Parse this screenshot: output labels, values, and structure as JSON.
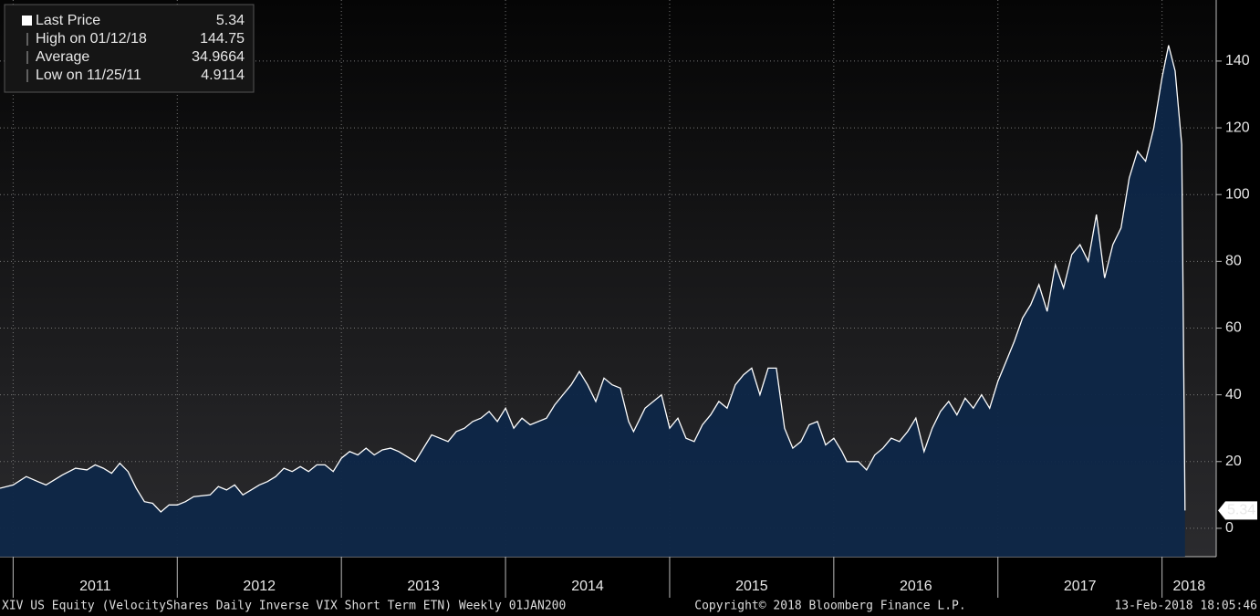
{
  "chart_data": {
    "type": "area",
    "legend": [
      {
        "label": "Last Price",
        "value": 5.34
      },
      {
        "label": "High on 01/12/18",
        "value": 144.75
      },
      {
        "label": "Average",
        "value": 34.9664
      },
      {
        "label": "Low on 11/25/11",
        "value": 4.9114
      }
    ],
    "series": [
      {
        "name": "Last Price",
        "color": "#ffffff",
        "fill": "#0e2748",
        "x": [
          2010.92,
          2011.0,
          2011.08,
          2011.15,
          2011.2,
          2011.25,
          2011.3,
          2011.38,
          2011.45,
          2011.5,
          2011.55,
          2011.6,
          2011.65,
          2011.7,
          2011.75,
          2011.8,
          2011.85,
          2011.9,
          2011.95,
          2012.0,
          2012.05,
          2012.1,
          2012.2,
          2012.25,
          2012.3,
          2012.35,
          2012.4,
          2012.45,
          2012.5,
          2012.55,
          2012.6,
          2012.65,
          2012.7,
          2012.75,
          2012.8,
          2012.85,
          2012.9,
          2012.95,
          2013.0,
          2013.05,
          2013.1,
          2013.15,
          2013.2,
          2013.25,
          2013.3,
          2013.35,
          2013.45,
          2013.5,
          2013.55,
          2013.6,
          2013.65,
          2013.7,
          2013.75,
          2013.8,
          2013.85,
          2013.9,
          2013.95,
          2014.0,
          2014.05,
          2014.1,
          2014.15,
          2014.2,
          2014.25,
          2014.3,
          2014.35,
          2014.4,
          2014.45,
          2014.5,
          2014.55,
          2014.6,
          2014.65,
          2014.7,
          2014.75,
          2014.78,
          2014.85,
          2014.95,
          2015.0,
          2015.05,
          2015.1,
          2015.15,
          2015.2,
          2015.25,
          2015.3,
          2015.35,
          2015.4,
          2015.45,
          2015.5,
          2015.55,
          2015.6,
          2015.65,
          2015.7,
          2015.75,
          2015.8,
          2015.85,
          2015.9,
          2015.95,
          2016.0,
          2016.05,
          2016.08,
          2016.15,
          2016.2,
          2016.25,
          2016.3,
          2016.35,
          2016.4,
          2016.45,
          2016.5,
          2016.55,
          2016.6,
          2016.65,
          2016.7,
          2016.75,
          2016.8,
          2016.85,
          2016.9,
          2016.95,
          2017.0,
          2017.05,
          2017.1,
          2017.15,
          2017.2,
          2017.25,
          2017.3,
          2017.35,
          2017.4,
          2017.45,
          2017.5,
          2017.55,
          2017.6,
          2017.65,
          2017.7,
          2017.75,
          2017.8,
          2017.85,
          2017.9,
          2017.95,
          2018.0,
          2018.04,
          2018.08,
          2018.12,
          2018.14
        ],
        "values": [
          12,
          13,
          15.5,
          14,
          13,
          14.5,
          16,
          18,
          17.5,
          19,
          18,
          16.5,
          19.5,
          17,
          12,
          8,
          7.5,
          4.9114,
          7,
          7,
          8,
          9.5,
          10,
          12.5,
          11.5,
          13,
          10,
          11.5,
          13,
          14,
          15.5,
          18,
          17,
          18.5,
          17,
          19,
          19,
          17,
          21,
          23,
          22,
          24,
          22,
          23.5,
          24,
          23,
          20,
          24,
          28,
          27,
          26,
          29,
          30,
          32,
          33,
          35,
          32,
          36,
          30,
          33,
          31,
          32,
          33,
          37,
          40,
          43,
          47,
          43,
          38,
          45,
          43,
          42,
          32,
          29,
          36,
          40,
          30,
          33,
          27,
          26,
          31,
          34,
          38,
          36,
          43,
          46,
          48,
          40,
          48,
          48,
          30,
          24,
          26,
          31,
          32,
          25,
          27,
          23,
          20,
          20,
          17.5,
          22,
          24,
          27,
          26,
          29,
          33,
          23,
          30,
          35,
          38,
          34,
          39,
          36,
          40,
          36,
          44,
          50,
          56,
          63,
          67,
          73,
          65,
          79,
          72,
          82,
          85,
          80,
          94,
          75,
          85,
          90,
          105,
          113,
          110,
          120,
          135,
          144.75,
          137,
          115,
          5.34
        ]
      }
    ],
    "xlim": [
      2010.92,
      2018.33
    ],
    "xticks": [
      2011,
      2012,
      2013,
      2014,
      2015,
      2016,
      2017,
      2018
    ],
    "ylim": [
      -8.5,
      158.3
    ],
    "yticks": [
      0,
      20,
      40,
      60,
      80,
      100,
      120,
      140
    ],
    "grid": true,
    "footer": {
      "left": "XIV US Equity (VelocityShares Daily Inverse VIX Short Term ETN)  Weekly 01JAN200",
      "center": "Copyright© 2018 Bloomberg Finance L.P.",
      "right": "13-Feb-2018 18:05:46"
    }
  }
}
